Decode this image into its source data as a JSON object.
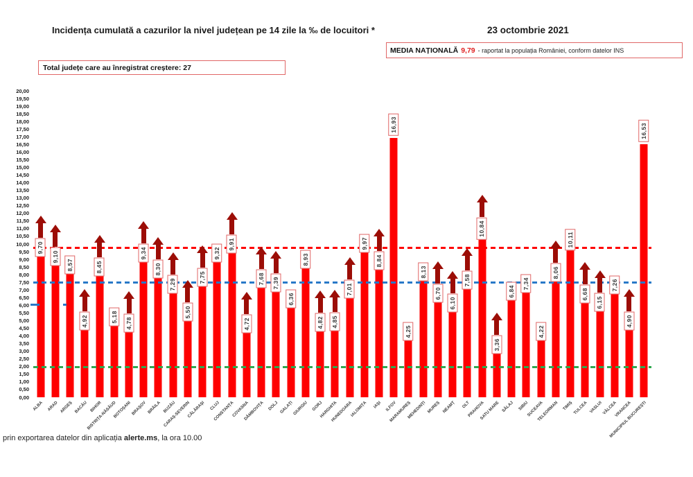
{
  "header": {
    "title": "Incidența cumulată a cazurilor la nivel județean pe 14 zile la ‰ de locuitori *",
    "date": "23 octombrie 2021",
    "media_label": "MEDIA NAȚIONALĂ",
    "media_value": "9,79",
    "media_note": "-  raportat la populația României, conform datelor INS",
    "total_label": "Total județe care au înregistrat creștere:  27"
  },
  "footer": {
    "note_prefix": "prin exportarea datelor din aplicația ",
    "note_bold": "alerte.ms",
    "note_suffix": ", la ora 10.00"
  },
  "chart_data": {
    "type": "bar",
    "title": "Incidența cumulată a cazurilor la nivel județean pe 14 zile la ‰ de locuitori",
    "categories": [
      "ALBA",
      "ARAD",
      "ARGEȘ",
      "BACĂU",
      "BIHOR",
      "BISTRIȚA-NĂSĂUD",
      "BOTOȘANI",
      "BRAȘOV",
      "BRĂILA",
      "BUZĂU",
      "CARAȘ-SEVERIN",
      "CĂLĂRAȘI",
      "CLUJ",
      "CONSTANȚA",
      "COVASNA",
      "DÂMBOVIȚA",
      "DOLJ",
      "GALAȚI",
      "GIURGIU",
      "GORJ",
      "HARGHITA",
      "HUNEDOARA",
      "IALOMIȚA",
      "IAȘI",
      "ILFOV",
      "MARAMUREȘ",
      "MEHEDINȚI",
      "MUREȘ",
      "NEAMȚ",
      "OLT",
      "PRAHOVA",
      "SATU MARE",
      "SĂLAJ",
      "SIBIU",
      "SUCEAVA",
      "TELEORMAN",
      "TIMIȘ",
      "TULCEA",
      "VASLUI",
      "VÂLCEA",
      "VRANCEA",
      "MUNICIPIUL BUCUREȘTI"
    ],
    "values": [
      9.7,
      9.1,
      8.57,
      4.92,
      8.45,
      5.18,
      4.78,
      9.34,
      8.3,
      7.29,
      5.5,
      7.75,
      9.32,
      9.91,
      4.72,
      7.68,
      7.39,
      6.36,
      8.93,
      4.82,
      4.85,
      7.01,
      9.97,
      8.84,
      16.93,
      4.25,
      8.13,
      6.7,
      6.1,
      7.58,
      10.84,
      3.36,
      6.84,
      7.34,
      4.22,
      8.06,
      10.11,
      6.68,
      6.15,
      7.26,
      4.9,
      16.53
    ],
    "value_labels": [
      "9,70",
      "9,10",
      "8,57",
      "4,92",
      "8,45",
      "5,18",
      "4,78",
      "9,34",
      "8,30",
      "7,29",
      "5,50",
      "7,75",
      "9,32",
      "9,91",
      "4,72",
      "7,68",
      "7,39",
      "6,36",
      "8,93",
      "4,82",
      "4,85",
      "7,01",
      "9,97",
      "8,84",
      "16,93",
      "4,25",
      "8,13",
      "6,70",
      "6,10",
      "7,58",
      "10,84",
      "3,36",
      "6,84",
      "7,34",
      "4,22",
      "8,06",
      "10,11",
      "6,68",
      "6,15",
      "7,26",
      "4,90",
      "16,53"
    ],
    "increase": [
      true,
      true,
      false,
      true,
      true,
      false,
      true,
      true,
      true,
      true,
      true,
      true,
      false,
      true,
      true,
      true,
      true,
      false,
      false,
      true,
      true,
      true,
      false,
      true,
      false,
      false,
      false,
      true,
      true,
      true,
      true,
      true,
      false,
      false,
      false,
      true,
      false,
      true,
      true,
      false,
      true,
      false
    ],
    "increase_total": 27,
    "ylim": [
      0,
      20
    ],
    "ytick_step": 0.5,
    "ytick_decimal_separator": ",",
    "bar_color": "#FE0000",
    "arrow_color": "#9C0D06",
    "grid": false,
    "legend": false,
    "reference_lines": [
      {
        "name": "media-nationala-line",
        "value": 9.79,
        "color": "#FE0000",
        "style": "dashed"
      },
      {
        "name": "blue-threshold-line",
        "value": 7.5,
        "color": "#2878C8",
        "style": "dashed"
      },
      {
        "name": "green-threshold-line",
        "value": 2.0,
        "color": "#2FA84F",
        "style": "dashed"
      }
    ]
  }
}
